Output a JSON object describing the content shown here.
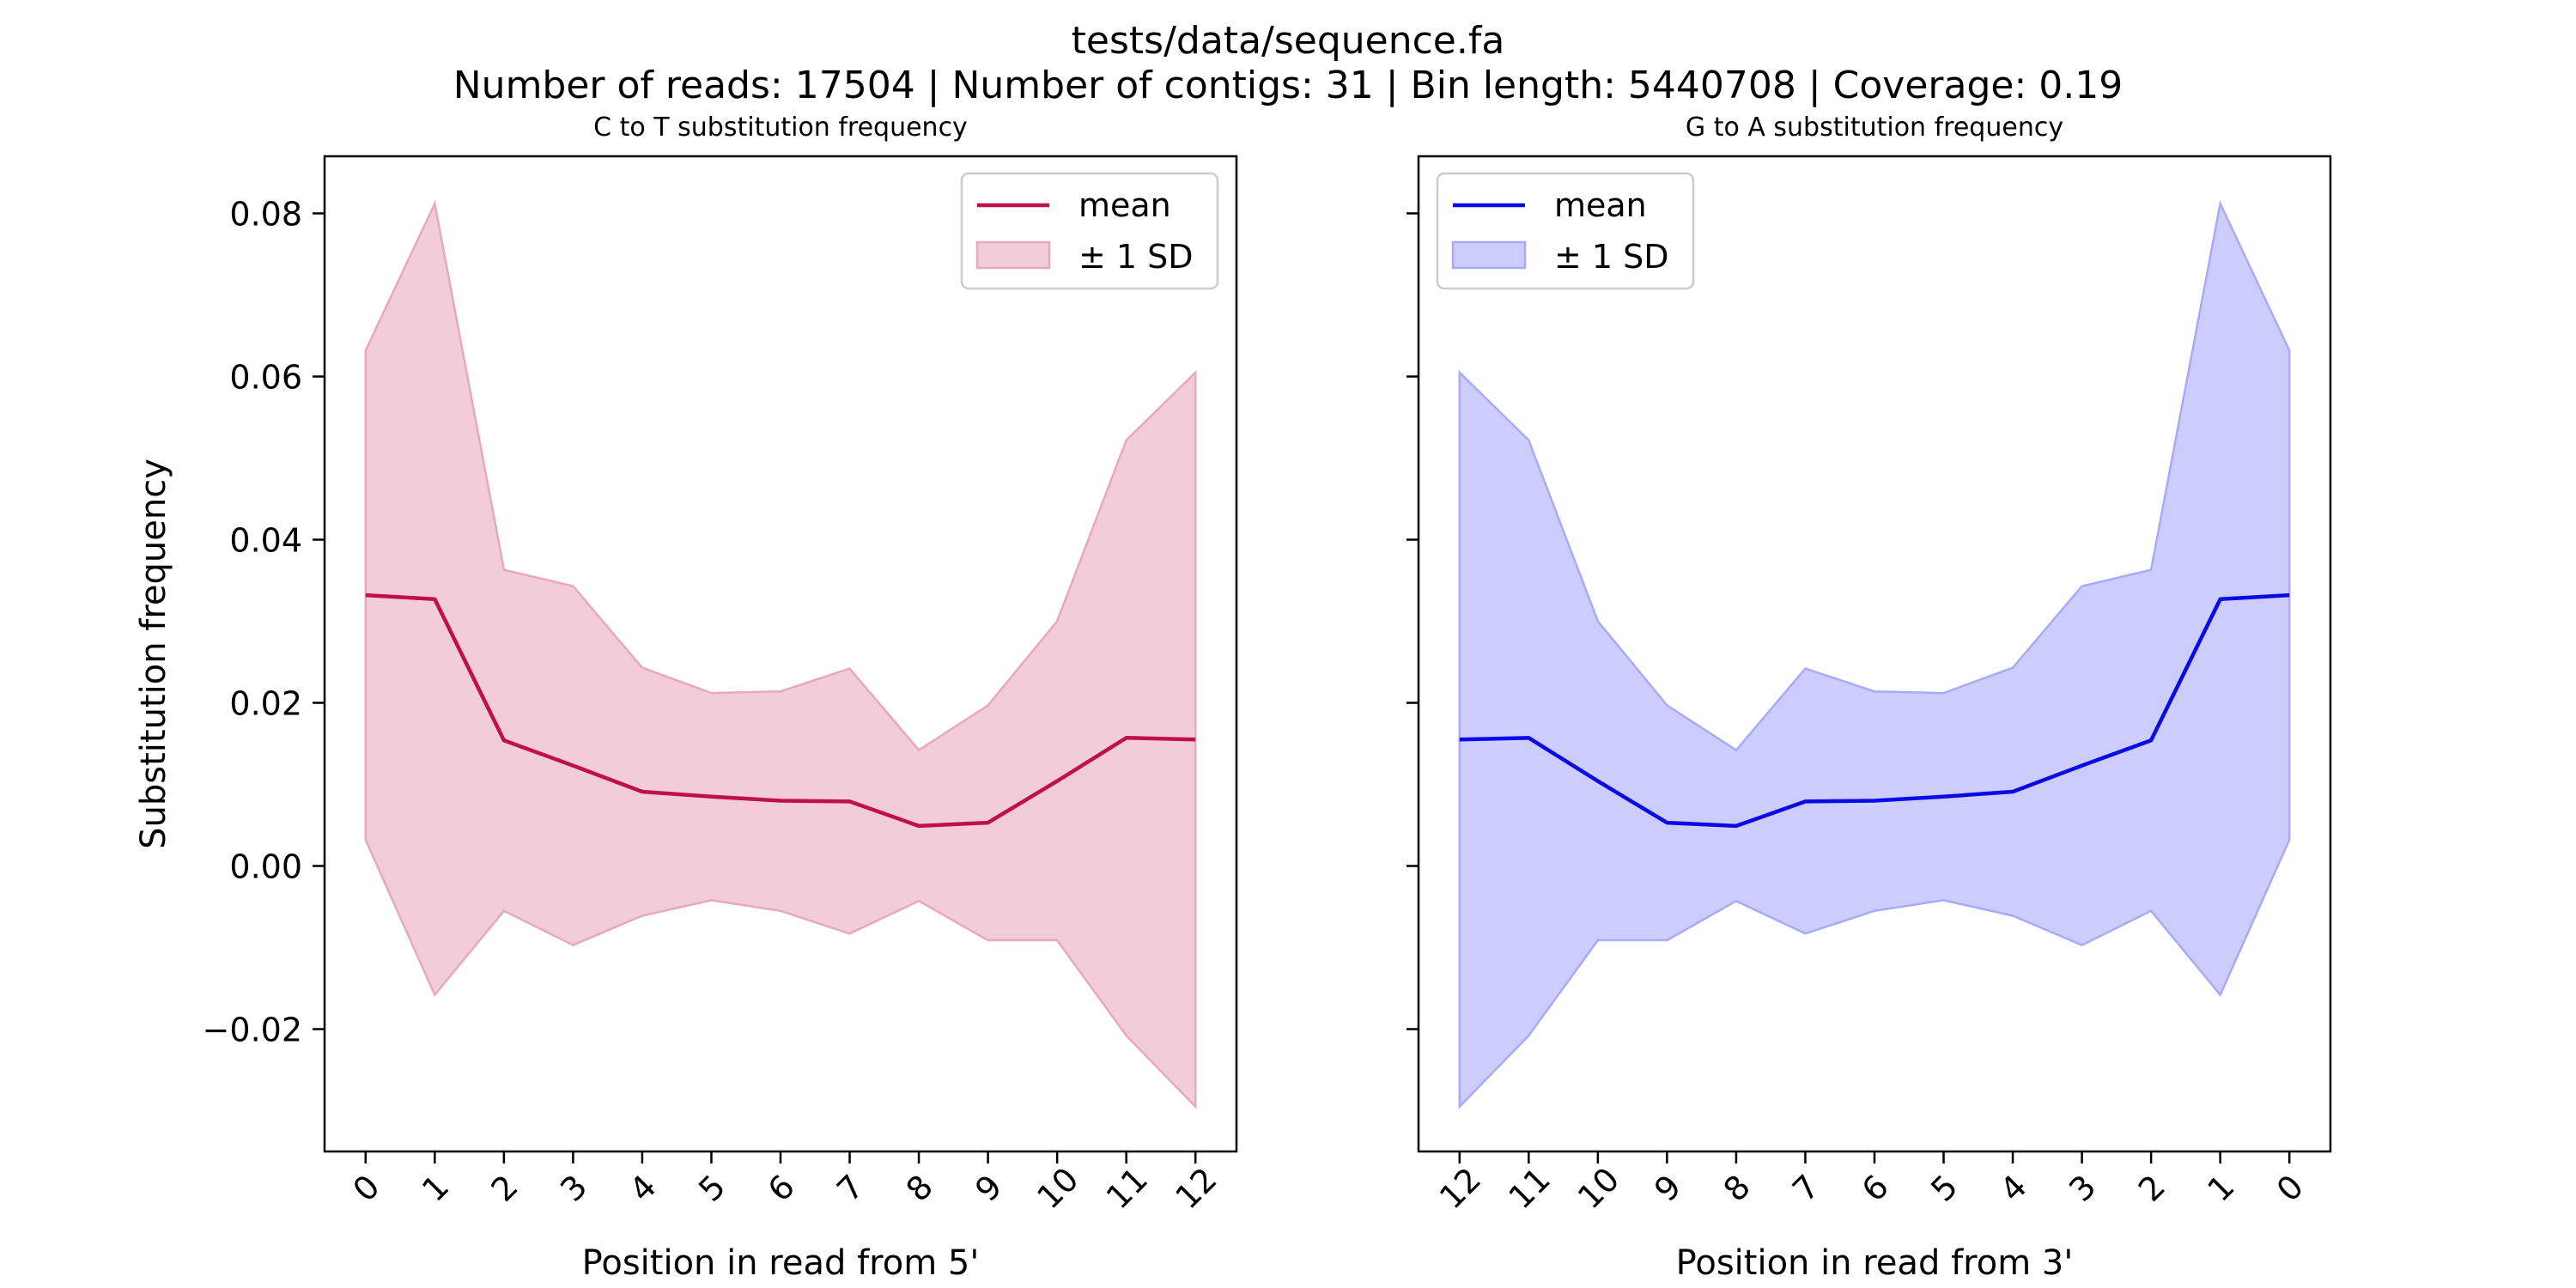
{
  "figure": {
    "title": "tests/data/sequence.fa",
    "subtitle": "Number of reads: 17504 | Number of contigs: 31 | Bin length: 5440708 | Coverage: 0.19"
  },
  "chart_data": [
    {
      "type": "line",
      "title": "C to T substitution frequency",
      "xlabel": "Position in read from 5'",
      "ylabel": "Substitution frequency",
      "x": [
        0,
        1,
        2,
        3,
        4,
        5,
        6,
        7,
        8,
        9,
        10,
        11,
        12
      ],
      "x_tick_labels": [
        "0",
        "1",
        "2",
        "3",
        "4",
        "5",
        "6",
        "7",
        "8",
        "9",
        "10",
        "11",
        "12"
      ],
      "ylim": [
        -0.035,
        0.087
      ],
      "y_ticks": [
        -0.02,
        0.0,
        0.02,
        0.04,
        0.06,
        0.08
      ],
      "y_tick_labels": [
        "−0.02",
        "0.00",
        "0.02",
        "0.04",
        "0.06",
        "0.08"
      ],
      "grid": false,
      "legend_position": "top-right",
      "legend": {
        "mean_label": "mean",
        "band_label": "± 1 SD"
      },
      "series": [
        {
          "name": "mean",
          "values": [
            0.0332,
            0.0327,
            0.0154,
            0.0123,
            0.0091,
            0.0085,
            0.008,
            0.0079,
            0.0049,
            0.0053,
            0.0104,
            0.0157,
            0.0155
          ]
        },
        {
          "name": "± 1 SD",
          "upper": [
            0.0632,
            0.0812,
            0.0363,
            0.0343,
            0.0243,
            0.0212,
            0.0214,
            0.0242,
            0.0142,
            0.0197,
            0.03,
            0.0522,
            0.0605
          ],
          "lower": [
            0.0032,
            -0.0158,
            -0.0055,
            -0.0097,
            -0.0061,
            -0.0042,
            -0.0055,
            -0.0083,
            -0.0043,
            -0.0091,
            -0.0091,
            -0.0208,
            -0.0295
          ]
        }
      ],
      "colors": {
        "line": "#c0104a",
        "fill": "#f2ccd9",
        "fill_edge": "#e8a8bf"
      }
    },
    {
      "type": "line",
      "title": "G to A substitution frequency",
      "xlabel": "Position in read from 3'",
      "ylabel": "",
      "x": [
        12,
        11,
        10,
        9,
        8,
        7,
        6,
        5,
        4,
        3,
        2,
        1,
        0
      ],
      "x_tick_labels": [
        "12",
        "11",
        "10",
        "9",
        "8",
        "7",
        "6",
        "5",
        "4",
        "3",
        "2",
        "1",
        "0"
      ],
      "ylim": [
        -0.035,
        0.087
      ],
      "y_ticks": [
        -0.02,
        0.0,
        0.02,
        0.04,
        0.06,
        0.08
      ],
      "y_tick_labels": [],
      "grid": false,
      "legend_position": "top-left",
      "legend": {
        "mean_label": "mean",
        "band_label": "± 1 SD"
      },
      "series": [
        {
          "name": "mean",
          "values": [
            0.0155,
            0.0157,
            0.0104,
            0.0053,
            0.0049,
            0.0079,
            0.008,
            0.0085,
            0.0091,
            0.0123,
            0.0154,
            0.0327,
            0.0332
          ]
        },
        {
          "name": "± 1 SD",
          "upper": [
            0.0605,
            0.0522,
            0.03,
            0.0197,
            0.0142,
            0.0242,
            0.0214,
            0.0212,
            0.0243,
            0.0343,
            0.0363,
            0.0812,
            0.0632
          ],
          "lower": [
            -0.0295,
            -0.0208,
            -0.0091,
            -0.0091,
            -0.0043,
            -0.0083,
            -0.0055,
            -0.0042,
            -0.0061,
            -0.0097,
            -0.0055,
            -0.0158,
            0.0032
          ]
        }
      ],
      "colors": {
        "line": "#0a0ae6",
        "fill": "#cccdfc",
        "fill_edge": "#a9aaf8"
      }
    }
  ]
}
